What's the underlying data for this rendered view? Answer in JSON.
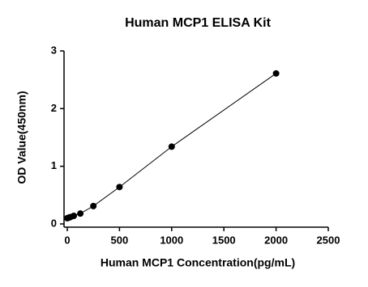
{
  "chart_data": {
    "type": "line",
    "title": "Human MCP1 ELISA Kit",
    "x_label": "Human MCP1 Concentration(pg/mL)",
    "y_label": "OD Value(450nm)",
    "series": [
      {
        "color": "#000000",
        "x": [
          0,
          15.6,
          31.25,
          62.5,
          125,
          250,
          500,
          1000,
          2000
        ],
        "values": [
          0.1,
          0.11,
          0.12,
          0.14,
          0.18,
          0.31,
          0.64,
          1.34,
          2.61
        ]
      }
    ],
    "xlim": [
      0,
      2500
    ],
    "xticks": [
      0,
      500,
      1000,
      1500,
      2000,
      2500
    ],
    "ylim": [
      0,
      3
    ],
    "yticks": [
      0,
      1,
      2,
      3
    ],
    "grid": false
  }
}
